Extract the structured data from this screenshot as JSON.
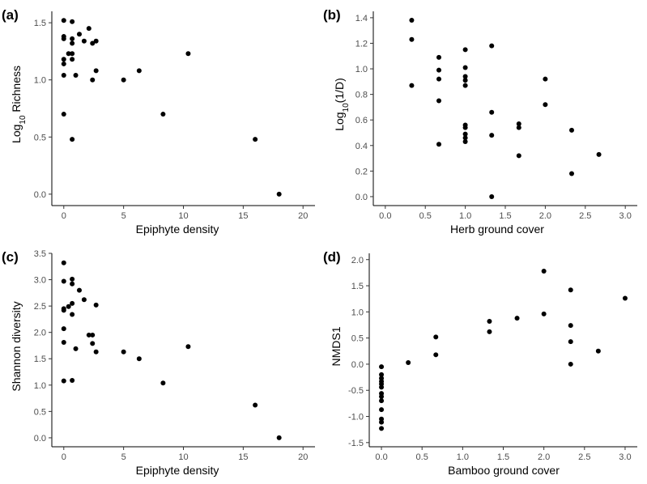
{
  "chart_data": [
    {
      "panel": "(a)",
      "type": "scatter",
      "xlabel": "Epiphyte density",
      "ylabel": "Log10 Richness",
      "ylabel_main": "Log",
      "ylabel_sub": "10",
      "ylabel_rest": " Richness",
      "xlim": [
        -1,
        21
      ],
      "ylim": [
        -0.1,
        1.6
      ],
      "xticks": [
        0,
        5,
        10,
        15,
        20
      ],
      "yticks": [
        0.0,
        0.5,
        1.0,
        1.5
      ],
      "xtick_labels": [
        "0",
        "5",
        "10",
        "15",
        "20"
      ],
      "ytick_labels": [
        "0.0",
        "0.5",
        "1.0",
        "1.5"
      ],
      "points": [
        {
          "x": 0.0,
          "y": 1.52
        },
        {
          "x": 0.0,
          "y": 1.38
        },
        {
          "x": 0.0,
          "y": 1.36
        },
        {
          "x": 0.0,
          "y": 1.18
        },
        {
          "x": 0.0,
          "y": 1.14
        },
        {
          "x": 0.0,
          "y": 1.04
        },
        {
          "x": 0.0,
          "y": 0.7
        },
        {
          "x": 0.4,
          "y": 1.23
        },
        {
          "x": 0.7,
          "y": 1.51
        },
        {
          "x": 0.7,
          "y": 1.36
        },
        {
          "x": 0.7,
          "y": 1.32
        },
        {
          "x": 0.7,
          "y": 1.23
        },
        {
          "x": 0.7,
          "y": 1.18
        },
        {
          "x": 0.7,
          "y": 0.48
        },
        {
          "x": 1.0,
          "y": 1.04
        },
        {
          "x": 1.3,
          "y": 1.4
        },
        {
          "x": 1.7,
          "y": 1.34
        },
        {
          "x": 2.1,
          "y": 1.45
        },
        {
          "x": 2.4,
          "y": 1.32
        },
        {
          "x": 2.4,
          "y": 1.0
        },
        {
          "x": 2.7,
          "y": 1.34
        },
        {
          "x": 2.7,
          "y": 1.08
        },
        {
          "x": 5.0,
          "y": 1.0
        },
        {
          "x": 6.3,
          "y": 1.08
        },
        {
          "x": 8.3,
          "y": 0.7
        },
        {
          "x": 10.4,
          "y": 1.23
        },
        {
          "x": 16.0,
          "y": 0.48
        },
        {
          "x": 18.0,
          "y": 0.0
        }
      ]
    },
    {
      "panel": "(b)",
      "type": "scatter",
      "xlabel": "Herb ground cover",
      "ylabel": "Log10(1/D)",
      "ylabel_main": "Log",
      "ylabel_sub": "10",
      "ylabel_rest": "(1/D)",
      "xlim": [
        -0.15,
        3.15
      ],
      "ylim": [
        -0.07,
        1.45
      ],
      "xticks": [
        0.0,
        0.5,
        1.0,
        1.5,
        2.0,
        2.5,
        3.0
      ],
      "yticks": [
        0.0,
        0.2,
        0.4,
        0.6,
        0.8,
        1.0,
        1.2,
        1.4
      ],
      "xtick_labels": [
        "0.0",
        "0.5",
        "1.0",
        "1.5",
        "2.0",
        "2.5",
        "3.0"
      ],
      "ytick_labels": [
        "0.0",
        "0.2",
        "0.4",
        "0.6",
        "0.8",
        "1.0",
        "1.2",
        "1.4"
      ],
      "points": [
        {
          "x": 0.33,
          "y": 1.38
        },
        {
          "x": 0.33,
          "y": 1.23
        },
        {
          "x": 0.33,
          "y": 0.87
        },
        {
          "x": 0.67,
          "y": 1.09
        },
        {
          "x": 0.67,
          "y": 0.99
        },
        {
          "x": 0.67,
          "y": 0.92
        },
        {
          "x": 0.67,
          "y": 0.75
        },
        {
          "x": 0.67,
          "y": 0.41
        },
        {
          "x": 1.0,
          "y": 1.15
        },
        {
          "x": 1.0,
          "y": 1.01
        },
        {
          "x": 1.0,
          "y": 0.94
        },
        {
          "x": 1.0,
          "y": 0.91
        },
        {
          "x": 1.0,
          "y": 0.87
        },
        {
          "x": 1.0,
          "y": 0.56
        },
        {
          "x": 1.0,
          "y": 0.54
        },
        {
          "x": 1.0,
          "y": 0.49
        },
        {
          "x": 1.0,
          "y": 0.46
        },
        {
          "x": 1.0,
          "y": 0.43
        },
        {
          "x": 1.33,
          "y": 1.18
        },
        {
          "x": 1.33,
          "y": 0.66
        },
        {
          "x": 1.33,
          "y": 0.48
        },
        {
          "x": 1.33,
          "y": 0.0
        },
        {
          "x": 1.67,
          "y": 0.57
        },
        {
          "x": 1.67,
          "y": 0.54
        },
        {
          "x": 1.67,
          "y": 0.32
        },
        {
          "x": 2.0,
          "y": 0.92
        },
        {
          "x": 2.0,
          "y": 0.72
        },
        {
          "x": 2.33,
          "y": 0.52
        },
        {
          "x": 2.33,
          "y": 0.18
        },
        {
          "x": 2.67,
          "y": 0.33
        }
      ]
    },
    {
      "panel": "(c)",
      "type": "scatter",
      "xlabel": "Epiphyte density",
      "ylabel": "Shannon diversity",
      "xlim": [
        -1,
        21
      ],
      "ylim": [
        -0.17,
        3.5
      ],
      "xticks": [
        0,
        5,
        10,
        15,
        20
      ],
      "yticks": [
        0.0,
        0.5,
        1.0,
        1.5,
        2.0,
        2.5,
        3.0,
        3.5
      ],
      "xtick_labels": [
        "0",
        "5",
        "10",
        "15",
        "20"
      ],
      "ytick_labels": [
        "0.0",
        "0.5",
        "1.0",
        "1.5",
        "2.0",
        "2.5",
        "3.0",
        "3.5"
      ],
      "points": [
        {
          "x": 0.0,
          "y": 3.32
        },
        {
          "x": 0.0,
          "y": 2.97
        },
        {
          "x": 0.0,
          "y": 2.45
        },
        {
          "x": 0.0,
          "y": 2.42
        },
        {
          "x": 0.0,
          "y": 2.07
        },
        {
          "x": 0.0,
          "y": 1.81
        },
        {
          "x": 0.0,
          "y": 1.08
        },
        {
          "x": 0.4,
          "y": 2.49
        },
        {
          "x": 0.7,
          "y": 3.01
        },
        {
          "x": 0.7,
          "y": 2.92
        },
        {
          "x": 0.7,
          "y": 2.55
        },
        {
          "x": 0.7,
          "y": 2.34
        },
        {
          "x": 0.7,
          "y": 1.09
        },
        {
          "x": 1.0,
          "y": 1.69
        },
        {
          "x": 1.3,
          "y": 2.8
        },
        {
          "x": 1.7,
          "y": 2.62
        },
        {
          "x": 2.1,
          "y": 1.95
        },
        {
          "x": 2.4,
          "y": 1.95
        },
        {
          "x": 2.4,
          "y": 1.79
        },
        {
          "x": 2.7,
          "y": 2.52
        },
        {
          "x": 2.7,
          "y": 1.63
        },
        {
          "x": 5.0,
          "y": 1.63
        },
        {
          "x": 6.3,
          "y": 1.5
        },
        {
          "x": 8.3,
          "y": 1.04
        },
        {
          "x": 10.4,
          "y": 1.73
        },
        {
          "x": 16.0,
          "y": 0.62
        },
        {
          "x": 18.0,
          "y": 0.0
        }
      ]
    },
    {
      "panel": "(d)",
      "type": "scatter",
      "xlabel": "Bamboo ground cover",
      "ylabel": "NMDS1",
      "xlim": [
        -0.15,
        3.15
      ],
      "ylim": [
        -1.58,
        2.12
      ],
      "xticks": [
        0.0,
        0.5,
        1.0,
        1.5,
        2.0,
        2.5,
        3.0
      ],
      "yticks": [
        -1.5,
        -1.0,
        -0.5,
        0.0,
        0.5,
        1.0,
        1.5,
        2.0
      ],
      "xtick_labels": [
        "0.0",
        "0.5",
        "1.0",
        "1.5",
        "2.0",
        "2.5",
        "3.0"
      ],
      "ytick_labels": [
        "-1.5",
        "-1.0",
        "-0.5",
        "0.0",
        "0.5",
        "1.0",
        "1.5",
        "2.0"
      ],
      "points": [
        {
          "x": 0.0,
          "y": -0.05
        },
        {
          "x": 0.0,
          "y": -0.2
        },
        {
          "x": 0.0,
          "y": -0.27
        },
        {
          "x": 0.0,
          "y": -0.33
        },
        {
          "x": 0.0,
          "y": -0.38
        },
        {
          "x": 0.0,
          "y": -0.44
        },
        {
          "x": 0.0,
          "y": -0.56
        },
        {
          "x": 0.0,
          "y": -0.62
        },
        {
          "x": 0.0,
          "y": -0.7
        },
        {
          "x": 0.0,
          "y": -0.87
        },
        {
          "x": 0.0,
          "y": -1.05
        },
        {
          "x": 0.0,
          "y": -1.11
        },
        {
          "x": 0.0,
          "y": -1.23
        },
        {
          "x": 0.33,
          "y": 0.03
        },
        {
          "x": 0.67,
          "y": 0.52
        },
        {
          "x": 0.67,
          "y": 0.18
        },
        {
          "x": 1.33,
          "y": 0.82
        },
        {
          "x": 1.33,
          "y": 0.62
        },
        {
          "x": 1.67,
          "y": 0.88
        },
        {
          "x": 2.0,
          "y": 1.78
        },
        {
          "x": 2.0,
          "y": 0.96
        },
        {
          "x": 2.33,
          "y": 1.42
        },
        {
          "x": 2.33,
          "y": 0.74
        },
        {
          "x": 2.33,
          "y": 0.43
        },
        {
          "x": 2.33,
          "y": 0.0
        },
        {
          "x": 2.67,
          "y": 0.25
        },
        {
          "x": 3.0,
          "y": 1.26
        }
      ]
    }
  ],
  "colors": {
    "point": "#000000",
    "axis": "#000000",
    "tick_text": "#4d4d4d",
    "background": "#ffffff"
  }
}
